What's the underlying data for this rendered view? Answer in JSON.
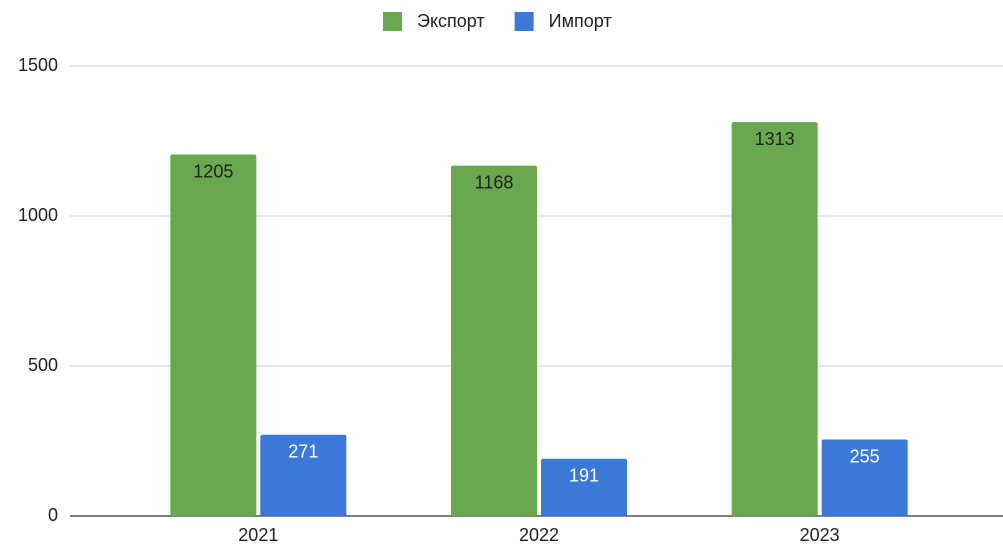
{
  "chart_data": {
    "type": "bar",
    "categories": [
      "2021",
      "2022",
      "2023"
    ],
    "series": [
      {
        "name": "Экспорт",
        "color": "#6aa84f",
        "values": [
          1205,
          1168,
          1313
        ]
      },
      {
        "name": "Импорт",
        "color": "#3c78d8",
        "values": [
          271,
          191,
          255
        ]
      }
    ],
    "ylim": [
      0,
      1500
    ],
    "yticks": [
      0,
      500,
      1000,
      1500
    ],
    "grid": true,
    "legend": "top",
    "data_labels": true
  }
}
